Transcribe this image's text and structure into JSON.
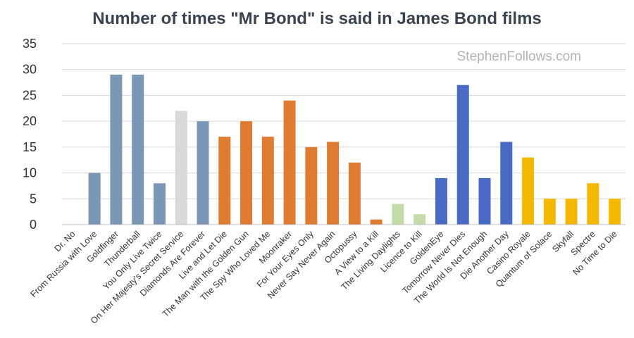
{
  "chart_data": {
    "type": "bar",
    "title": "Number of times \"Mr Bond\" is said in James Bond films",
    "watermark": "StephenFollows.com",
    "ylim": [
      0,
      35
    ],
    "yticks": [
      0,
      5,
      10,
      15,
      20,
      25,
      30,
      35
    ],
    "grid": true,
    "categories": [
      "Dr. No",
      "From Russia with Love",
      "Goldfinger",
      "Thunderball",
      "You Only Live Twice",
      "On Her Majesty's Secret Service",
      "Diamonds Are Forever",
      "Live and Let Die",
      "The Man with the Golden Gun",
      "The Spy Who Loved Me",
      "Moonraker",
      "For Your Eyes Only",
      "Never Say Never Again",
      "Octopussy",
      "A View to a Kill",
      "The Living Daylights",
      "Licence to Kill",
      "GoldenEye",
      "Tomorrow Never Dies",
      "The World Is Not Enough",
      "Die Another Day",
      "Casino Royale",
      "Quantum of Solace",
      "Skyfall",
      "Spectre",
      "No Time to Die"
    ],
    "values": [
      0,
      10,
      29,
      29,
      8,
      22,
      20,
      17,
      20,
      17,
      24,
      15,
      16,
      12,
      1,
      4,
      2,
      9,
      27,
      9,
      16,
      13,
      5,
      5,
      8,
      5
    ],
    "colors": [
      "#7a97b6",
      "#7a97b6",
      "#7a97b6",
      "#7a97b6",
      "#7a97b6",
      "#d9d9d9",
      "#7a97b6",
      "#e07b32",
      "#e07b32",
      "#e07b32",
      "#e07b32",
      "#e07b32",
      "#e07b32",
      "#e07b32",
      "#e07b32",
      "#c3dca8",
      "#c3dca8",
      "#4a6bc4",
      "#4a6bc4",
      "#4a6bc4",
      "#4a6bc4",
      "#f5b800",
      "#f5b800",
      "#f5b800",
      "#f5b800",
      "#f5b800"
    ]
  }
}
